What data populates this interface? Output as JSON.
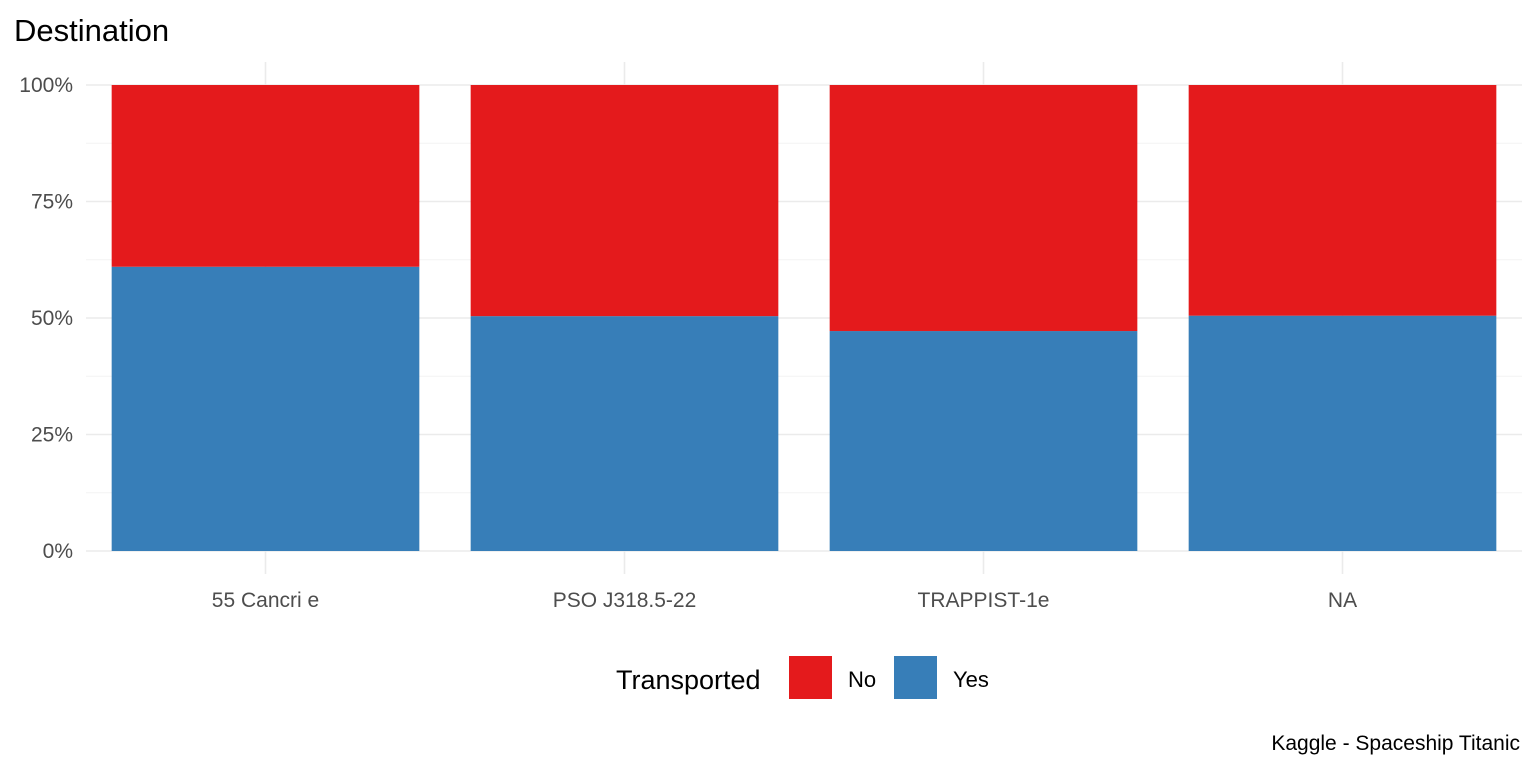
{
  "chart_data": {
    "type": "bar",
    "stacked": true,
    "position": "fill",
    "title": "Destination",
    "xlabel": "",
    "ylabel": "",
    "categories": [
      "55 Cancri e",
      "PSO J318.5-22",
      "TRAPPIST-1e",
      "NA"
    ],
    "series": [
      {
        "name": "Yes",
        "color": "#377EB8",
        "values": [
          0.61,
          0.504,
          0.472,
          0.505
        ]
      },
      {
        "name": "No",
        "color": "#E41A1C",
        "values": [
          0.39,
          0.496,
          0.528,
          0.495
        ]
      }
    ],
    "ylim": [
      0,
      1
    ],
    "y_ticks": [
      0,
      0.25,
      0.5,
      0.75,
      1
    ],
    "y_tick_labels": [
      "0%",
      "25%",
      "50%",
      "75%",
      "100%"
    ],
    "grid": true,
    "legend": {
      "title": "Transported",
      "position": "bottom",
      "entries": [
        {
          "label": "No",
          "color": "#E41A1C"
        },
        {
          "label": "Yes",
          "color": "#377EB8"
        }
      ]
    },
    "caption": "Kaggle - Spaceship Titanic"
  }
}
